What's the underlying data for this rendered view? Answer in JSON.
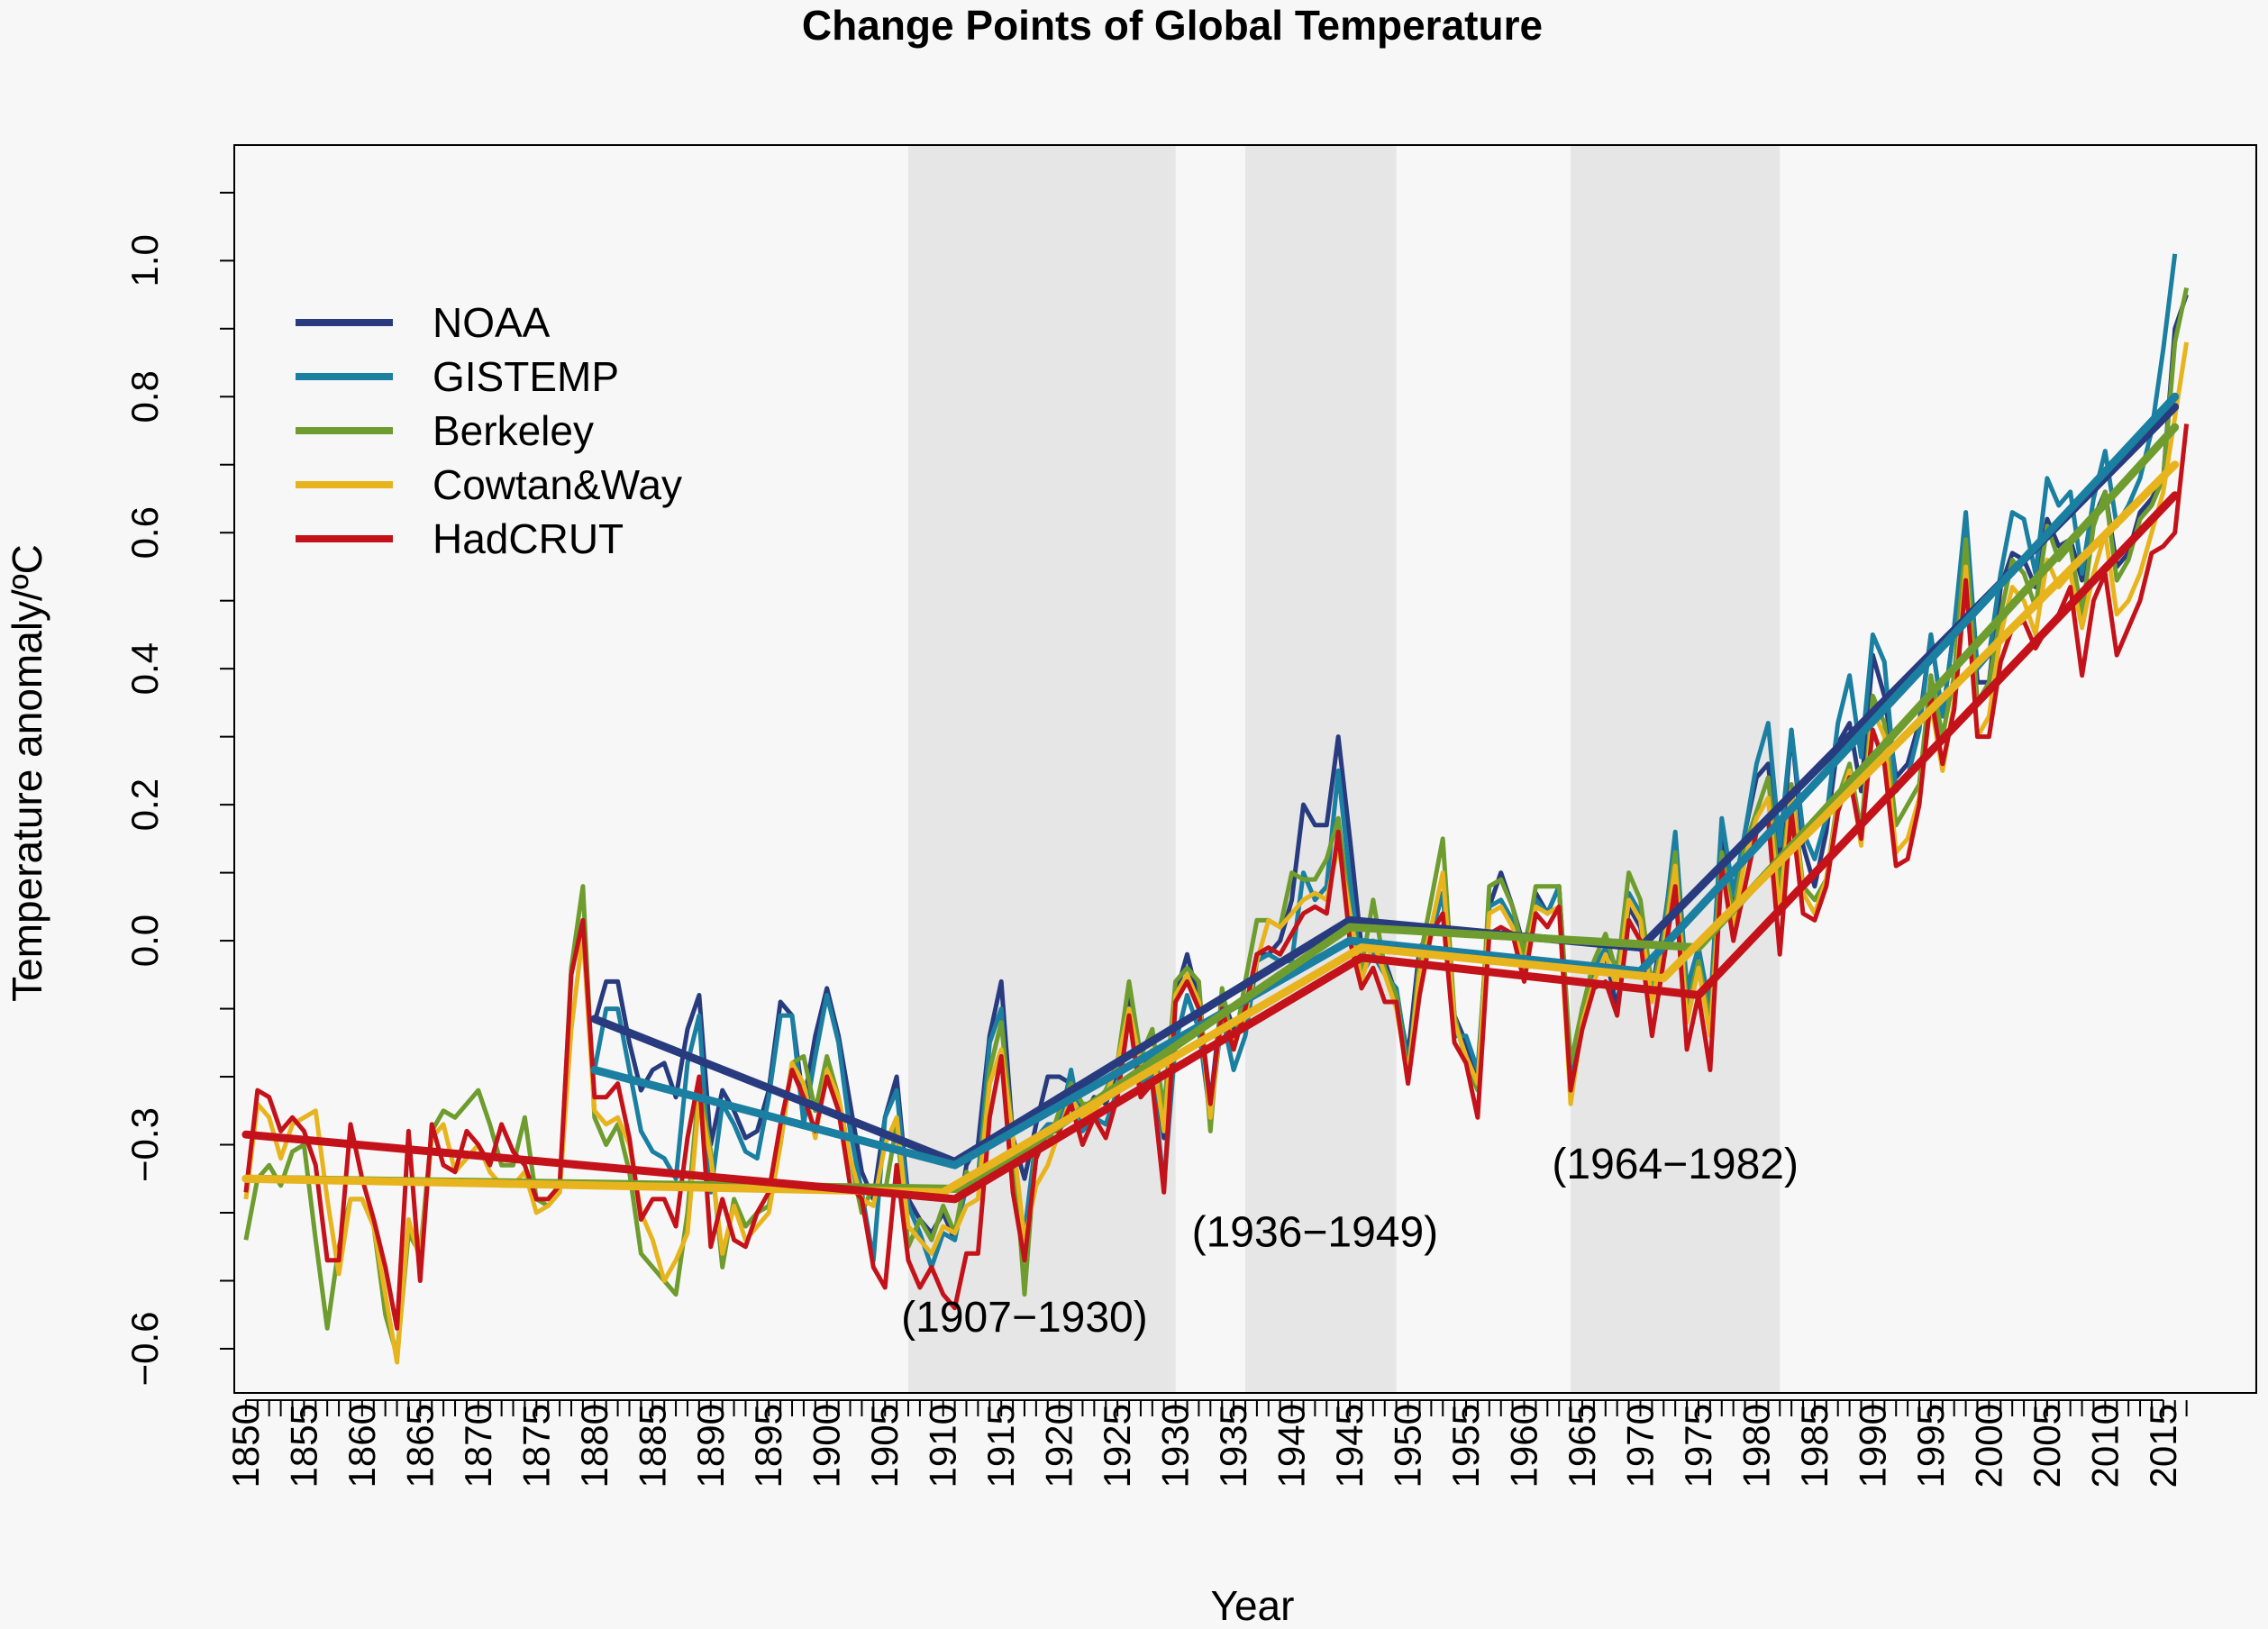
{
  "chart_data": {
    "type": "line",
    "title": "Change Points of Global Temperature",
    "xlabel": "Year",
    "ylabel": "Temperature anomaly/ºC",
    "xlim": [
      1849,
      2023
    ],
    "ylim": [
      -0.665,
      1.17
    ],
    "x_ticks": [
      1850,
      1855,
      1860,
      1865,
      1870,
      1875,
      1880,
      1885,
      1890,
      1895,
      1900,
      1905,
      1910,
      1915,
      1920,
      1925,
      1930,
      1935,
      1940,
      1945,
      1950,
      1955,
      1960,
      1965,
      1970,
      1975,
      1980,
      1985,
      1990,
      1995,
      2000,
      2005,
      2010,
      2015
    ],
    "y_tick_labels": [
      {
        "value": -0.6,
        "label": "−0.6"
      },
      {
        "value": -0.3,
        "label": "−0.3"
      },
      {
        "value": 0.0,
        "label": "0.0"
      },
      {
        "value": 0.2,
        "label": "0.2"
      },
      {
        "value": 0.4,
        "label": "0.4"
      },
      {
        "value": 0.6,
        "label": "0.6"
      },
      {
        "value": 0.8,
        "label": "0.8"
      },
      {
        "value": 1.0,
        "label": "1.0"
      }
    ],
    "y_minor_ticks": [
      -0.6,
      -0.5,
      -0.4,
      -0.3,
      -0.2,
      -0.1,
      0.0,
      0.1,
      0.2,
      0.3,
      0.4,
      0.5,
      0.6,
      0.7,
      0.8,
      0.9,
      1.0,
      1.1
    ],
    "shaded_periods": [
      {
        "start": 1907,
        "end": 1930,
        "label": "(1907−1930)",
        "label_x": 1917,
        "label_y": -0.575
      },
      {
        "start": 1936,
        "end": 1949,
        "label": "(1936−1949)",
        "label_x": 1942,
        "label_y": -0.45
      },
      {
        "start": 1964,
        "end": 1982,
        "label": "(1964−1982)",
        "label_x": 1973,
        "label_y": -0.35
      }
    ],
    "legend_position": "top-left",
    "series": [
      {
        "name": "NOAA",
        "color": "#283b7e",
        "start_year": 1880,
        "values": [
          -0.12,
          -0.06,
          -0.06,
          -0.15,
          -0.22,
          -0.19,
          -0.18,
          -0.23,
          -0.13,
          -0.08,
          -0.3,
          -0.22,
          -0.25,
          -0.29,
          -0.28,
          -0.22,
          -0.09,
          -0.11,
          -0.24,
          -0.14,
          -0.07,
          -0.14,
          -0.24,
          -0.34,
          -0.38,
          -0.26,
          -0.2,
          -0.38,
          -0.41,
          -0.43,
          -0.4,
          -0.44,
          -0.33,
          -0.3,
          -0.14,
          -0.06,
          -0.29,
          -0.35,
          -0.27,
          -0.2,
          -0.2,
          -0.21,
          -0.26,
          -0.23,
          -0.24,
          -0.19,
          -0.08,
          -0.18,
          -0.17,
          -0.29,
          -0.08,
          -0.02,
          -0.09,
          -0.24,
          -0.08,
          -0.13,
          -0.1,
          -0.02,
          -0.02,
          0.0,
          0.06,
          0.2,
          0.17,
          0.17,
          0.3,
          0.15,
          -0.01,
          0.0,
          -0.03,
          -0.08,
          -0.17,
          -0.01,
          0.01,
          0.07,
          -0.11,
          -0.15,
          -0.2,
          0.05,
          0.1,
          0.05,
          -0.01,
          0.07,
          0.04,
          0.08,
          -0.19,
          -0.1,
          -0.05,
          -0.02,
          -0.1,
          0.05,
          0.02,
          -0.07,
          0.02,
          0.14,
          -0.09,
          -0.01,
          -0.11,
          0.16,
          0.04,
          0.16,
          0.24,
          0.26,
          0.1,
          0.31,
          0.14,
          0.08,
          0.16,
          0.29,
          0.32,
          0.22,
          0.42,
          0.36,
          0.24,
          0.26,
          0.32,
          0.45,
          0.33,
          0.46,
          0.61,
          0.38,
          0.38,
          0.52,
          0.57,
          0.56,
          0.52,
          0.62,
          0.58,
          0.59,
          0.53,
          0.62,
          0.66,
          0.55,
          0.57,
          0.63,
          0.65,
          0.68,
          0.9,
          0.95
        ],
        "fit_x": [
          1880,
          1911,
          1945,
          1970,
          2016
        ],
        "fit_y": [
          -0.115,
          -0.325,
          0.03,
          -0.01,
          0.785
        ]
      },
      {
        "name": "GISTEMP",
        "color": "#1a7fa0",
        "start_year": 1880,
        "values": [
          -0.19,
          -0.1,
          -0.1,
          -0.19,
          -0.28,
          -0.31,
          -0.32,
          -0.35,
          -0.18,
          -0.11,
          -0.37,
          -0.24,
          -0.27,
          -0.31,
          -0.32,
          -0.23,
          -0.11,
          -0.11,
          -0.27,
          -0.17,
          -0.08,
          -0.15,
          -0.28,
          -0.37,
          -0.47,
          -0.26,
          -0.22,
          -0.39,
          -0.43,
          -0.48,
          -0.43,
          -0.44,
          -0.36,
          -0.35,
          -0.15,
          -0.1,
          -0.35,
          -0.43,
          -0.29,
          -0.27,
          -0.27,
          -0.19,
          -0.28,
          -0.26,
          -0.27,
          -0.22,
          -0.1,
          -0.21,
          -0.2,
          -0.36,
          -0.15,
          -0.08,
          -0.13,
          -0.26,
          -0.11,
          -0.19,
          -0.14,
          -0.03,
          -0.02,
          -0.03,
          -0.03,
          0.1,
          0.06,
          0.08,
          0.25,
          0.09,
          -0.05,
          -0.02,
          -0.05,
          -0.07,
          -0.18,
          -0.07,
          0.01,
          0.07,
          -0.14,
          -0.14,
          -0.19,
          0.05,
          0.06,
          0.03,
          -0.03,
          0.06,
          0.04,
          0.08,
          -0.2,
          -0.1,
          -0.04,
          -0.01,
          -0.04,
          0.07,
          0.04,
          -0.08,
          0.01,
          0.16,
          -0.07,
          -0.01,
          -0.1,
          0.18,
          0.07,
          0.16,
          0.26,
          0.32,
          0.14,
          0.31,
          0.16,
          0.12,
          0.18,
          0.32,
          0.39,
          0.27,
          0.45,
          0.41,
          0.22,
          0.24,
          0.31,
          0.45,
          0.33,
          0.46,
          0.63,
          0.4,
          0.42,
          0.54,
          0.63,
          0.62,
          0.54,
          0.68,
          0.64,
          0.66,
          0.54,
          0.65,
          0.72,
          0.61,
          0.64,
          0.68,
          0.75,
          0.87,
          1.01
        ],
        "fit_x": [
          1880,
          1911,
          1945,
          1970,
          2016
        ],
        "fit_y": [
          -0.19,
          -0.33,
          0.0,
          -0.045,
          0.8
        ]
      },
      {
        "name": "Berkeley",
        "color": "#6e9c2e",
        "start_year": 1850,
        "values": [
          -0.44,
          -0.35,
          -0.33,
          -0.36,
          -0.31,
          -0.3,
          -0.44,
          -0.57,
          -0.45,
          -0.38,
          -0.38,
          -0.42,
          -0.55,
          -0.61,
          -0.43,
          -0.46,
          -0.28,
          -0.25,
          -0.26,
          -0.24,
          -0.22,
          -0.27,
          -0.33,
          -0.33,
          -0.26,
          -0.38,
          -0.39,
          -0.37,
          -0.04,
          0.08,
          -0.26,
          -0.3,
          -0.27,
          -0.34,
          -0.46,
          -0.48,
          -0.5,
          -0.52,
          -0.4,
          -0.21,
          -0.31,
          -0.48,
          -0.38,
          -0.42,
          -0.4,
          -0.39,
          -0.3,
          -0.18,
          -0.17,
          -0.25,
          -0.17,
          -0.23,
          -0.32,
          -0.4,
          -0.36,
          -0.37,
          -0.27,
          -0.45,
          -0.41,
          -0.44,
          -0.39,
          -0.43,
          -0.34,
          -0.36,
          -0.19,
          -0.12,
          -0.29,
          -0.52,
          -0.3,
          -0.3,
          -0.25,
          -0.21,
          -0.24,
          -0.24,
          -0.22,
          -0.18,
          -0.06,
          -0.17,
          -0.13,
          -0.25,
          -0.06,
          -0.04,
          -0.06,
          -0.28,
          -0.07,
          -0.16,
          -0.06,
          0.03,
          0.03,
          0.02,
          0.1,
          0.09,
          0.09,
          0.12,
          0.18,
          0.04,
          -0.04,
          0.06,
          -0.04,
          -0.08,
          -0.2,
          -0.03,
          0.06,
          0.15,
          -0.11,
          -0.18,
          -0.22,
          0.08,
          0.09,
          0.05,
          -0.02,
          0.08,
          0.08,
          0.08,
          -0.18,
          -0.1,
          -0.03,
          0.01,
          -0.05,
          0.1,
          0.06,
          -0.07,
          0.0,
          0.13,
          -0.1,
          -0.03,
          -0.12,
          0.13,
          0.04,
          0.14,
          0.19,
          0.24,
          0.07,
          0.23,
          0.08,
          0.06,
          0.09,
          0.21,
          0.26,
          0.16,
          0.36,
          0.32,
          0.17,
          0.2,
          0.23,
          0.39,
          0.3,
          0.39,
          0.59,
          0.35,
          0.38,
          0.48,
          0.56,
          0.54,
          0.49,
          0.61,
          0.56,
          0.58,
          0.48,
          0.61,
          0.66,
          0.53,
          0.56,
          0.62,
          0.64,
          0.68,
          0.88,
          0.96
        ],
        "fit_x": [
          1850,
          1912,
          1945,
          1975,
          2016
        ],
        "fit_y": [
          -0.35,
          -0.365,
          0.02,
          -0.01,
          0.755
        ]
      },
      {
        "name": "Cowtan&Way",
        "color": "#e8b41e",
        "start_year": 1850,
        "values": [
          -0.38,
          -0.24,
          -0.26,
          -0.32,
          -0.27,
          -0.26,
          -0.25,
          -0.38,
          -0.49,
          -0.38,
          -0.38,
          -0.42,
          -0.52,
          -0.62,
          -0.41,
          -0.47,
          -0.29,
          -0.27,
          -0.34,
          -0.32,
          -0.3,
          -0.34,
          -0.36,
          -0.36,
          -0.34,
          -0.4,
          -0.39,
          -0.37,
          -0.13,
          0.01,
          -0.25,
          -0.27,
          -0.26,
          -0.3,
          -0.4,
          -0.44,
          -0.5,
          -0.47,
          -0.43,
          -0.23,
          -0.32,
          -0.46,
          -0.39,
          -0.44,
          -0.42,
          -0.4,
          -0.3,
          -0.18,
          -0.21,
          -0.29,
          -0.19,
          -0.23,
          -0.32,
          -0.38,
          -0.39,
          -0.3,
          -0.26,
          -0.42,
          -0.44,
          -0.46,
          -0.42,
          -0.43,
          -0.39,
          -0.38,
          -0.21,
          -0.16,
          -0.29,
          -0.44,
          -0.36,
          -0.33,
          -0.28,
          -0.23,
          -0.26,
          -0.25,
          -0.23,
          -0.18,
          -0.1,
          -0.18,
          -0.16,
          -0.28,
          -0.08,
          -0.05,
          -0.09,
          -0.26,
          -0.1,
          -0.15,
          -0.11,
          -0.03,
          0.03,
          0.02,
          0.04,
          0.06,
          0.07,
          0.06,
          0.14,
          0.04,
          -0.06,
          0.0,
          -0.05,
          -0.1,
          -0.2,
          -0.05,
          0.02,
          0.1,
          -0.12,
          -0.17,
          -0.21,
          0.04,
          0.05,
          0.02,
          -0.04,
          0.05,
          0.04,
          0.05,
          -0.24,
          -0.12,
          -0.06,
          -0.02,
          -0.07,
          0.06,
          0.03,
          -0.09,
          -0.01,
          0.11,
          -0.12,
          -0.04,
          -0.14,
          0.11,
          0.02,
          0.12,
          0.18,
          0.21,
          0.04,
          0.22,
          0.07,
          0.04,
          0.09,
          0.2,
          0.25,
          0.14,
          0.34,
          0.3,
          0.13,
          0.15,
          0.21,
          0.35,
          0.25,
          0.35,
          0.55,
          0.3,
          0.33,
          0.45,
          0.52,
          0.5,
          0.45,
          0.56,
          0.52,
          0.54,
          0.46,
          0.54,
          0.6,
          0.48,
          0.5,
          0.54,
          0.6,
          0.66,
          0.77,
          0.88
        ],
        "fit_x": [
          1850,
          1910,
          1946,
          1972,
          2016
        ],
        "fit_y": [
          -0.35,
          -0.37,
          -0.01,
          -0.055,
          0.7
        ]
      },
      {
        "name": "HadCRUT",
        "color": "#c4121a",
        "start_year": 1850,
        "values": [
          -0.37,
          -0.22,
          -0.23,
          -0.28,
          -0.26,
          -0.28,
          -0.33,
          -0.47,
          -0.47,
          -0.27,
          -0.35,
          -0.41,
          -0.48,
          -0.57,
          -0.28,
          -0.5,
          -0.27,
          -0.33,
          -0.34,
          -0.28,
          -0.3,
          -0.33,
          -0.27,
          -0.31,
          -0.33,
          -0.38,
          -0.38,
          -0.36,
          -0.05,
          0.03,
          -0.23,
          -0.23,
          -0.21,
          -0.29,
          -0.41,
          -0.38,
          -0.38,
          -0.42,
          -0.29,
          -0.2,
          -0.45,
          -0.38,
          -0.44,
          -0.45,
          -0.4,
          -0.37,
          -0.27,
          -0.19,
          -0.23,
          -0.28,
          -0.2,
          -0.25,
          -0.36,
          -0.38,
          -0.48,
          -0.51,
          -0.33,
          -0.47,
          -0.51,
          -0.48,
          -0.52,
          -0.54,
          -0.46,
          -0.46,
          -0.26,
          -0.17,
          -0.37,
          -0.47,
          -0.32,
          -0.28,
          -0.28,
          -0.24,
          -0.3,
          -0.26,
          -0.29,
          -0.23,
          -0.11,
          -0.23,
          -0.21,
          -0.37,
          -0.09,
          -0.06,
          -0.1,
          -0.24,
          -0.1,
          -0.16,
          -0.1,
          -0.02,
          -0.01,
          -0.02,
          0.01,
          0.04,
          0.05,
          0.04,
          0.16,
          0.0,
          -0.07,
          -0.04,
          -0.09,
          -0.09,
          -0.21,
          -0.08,
          0.01,
          0.04,
          -0.15,
          -0.18,
          -0.26,
          0.01,
          0.02,
          0.01,
          -0.06,
          0.04,
          0.02,
          0.05,
          -0.22,
          -0.13,
          -0.07,
          -0.06,
          -0.11,
          0.03,
          0.0,
          -0.14,
          -0.03,
          0.08,
          -0.16,
          -0.08,
          -0.19,
          0.11,
          0.0,
          0.08,
          0.16,
          0.18,
          -0.02,
          0.19,
          0.04,
          0.03,
          0.08,
          0.19,
          0.24,
          0.15,
          0.31,
          0.26,
          0.11,
          0.12,
          0.2,
          0.36,
          0.26,
          0.34,
          0.53,
          0.3,
          0.3,
          0.41,
          0.46,
          0.47,
          0.43,
          0.46,
          0.48,
          0.52,
          0.39,
          0.5,
          0.54,
          0.42,
          0.46,
          0.5,
          0.57,
          0.58,
          0.6,
          0.76
        ],
        "fit_x": [
          1850,
          1911,
          1946,
          1975,
          2016
        ],
        "fit_y": [
          -0.285,
          -0.38,
          -0.025,
          -0.08,
          0.655
        ]
      }
    ]
  }
}
